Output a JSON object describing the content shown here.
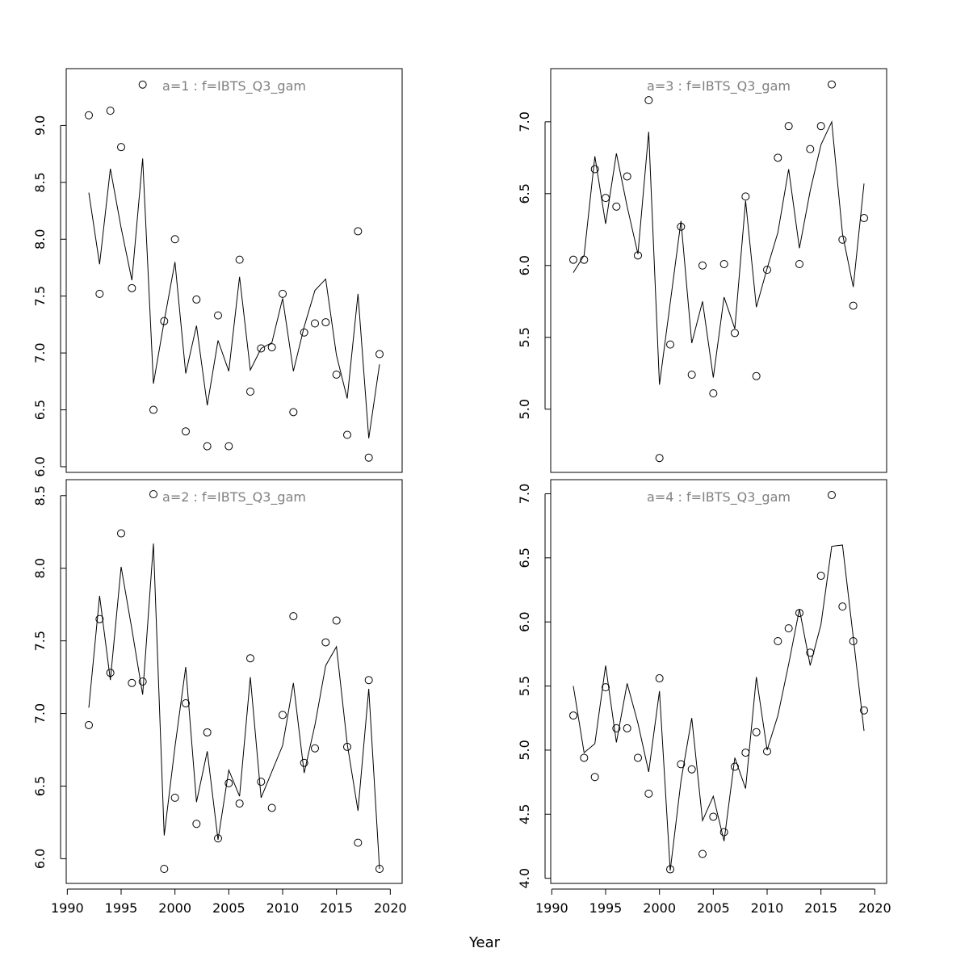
{
  "xlabel": "Year",
  "chart_data": [
    {
      "type": "line",
      "title": "a=1  :  f=IBTS_Q3_gam",
      "x": [
        1992,
        1993,
        1994,
        1995,
        1996,
        1997,
        1998,
        1999,
        2000,
        2001,
        2002,
        2003,
        2004,
        2005,
        2006,
        2007,
        2008,
        2009,
        2010,
        2011,
        2012,
        2013,
        2014,
        2015,
        2016,
        2017,
        2018,
        2019
      ],
      "xlim": [
        1989.9,
        2021.1
      ],
      "ylim": [
        5.95,
        9.5
      ],
      "yticks": [
        {
          "value": 6,
          "label": "6.0"
        },
        6.5,
        {
          "value": 7,
          "label": "7.0"
        },
        7.5,
        {
          "value": 8,
          "label": "8.0"
        },
        8.5,
        {
          "value": 9,
          "label": "9.0"
        }
      ],
      "series": [
        {
          "style": "points",
          "color": "#000000",
          "values": [
            9.09,
            7.52,
            9.13,
            8.81,
            7.57,
            9.36,
            6.5,
            7.28,
            8.0,
            6.31,
            7.47,
            6.18,
            7.33,
            6.18,
            7.82,
            6.66,
            7.04,
            7.05,
            7.52,
            6.48,
            7.18,
            7.26,
            7.27,
            6.81,
            6.28,
            8.07,
            6.08,
            6.99
          ]
        },
        {
          "style": "line",
          "color": "#000000",
          "values": [
            8.41,
            7.78,
            8.62,
            8.1,
            7.64,
            8.71,
            6.73,
            7.28,
            7.8,
            6.82,
            7.24,
            6.54,
            7.11,
            6.84,
            7.67,
            6.85,
            7.04,
            7.09,
            7.48,
            6.84,
            7.23,
            7.55,
            7.65,
            6.98,
            6.6,
            7.52,
            6.25,
            6.9
          ]
        }
      ]
    },
    {
      "type": "line",
      "title": "a=3  :  f=IBTS_Q3_gam",
      "x": [
        1992,
        1993,
        1994,
        1995,
        1996,
        1997,
        1998,
        1999,
        2000,
        2001,
        2002,
        2003,
        2004,
        2005,
        2006,
        2007,
        2008,
        2009,
        2010,
        2011,
        2012,
        2013,
        2014,
        2015,
        2016,
        2017,
        2018,
        2019
      ],
      "xlim": [
        1989.9,
        2021.1
      ],
      "ylim": [
        4.56,
        7.37
      ],
      "yticks": [
        {
          "value": 5,
          "label": "5.0"
        },
        5.5,
        {
          "value": 6,
          "label": "6.0"
        },
        6.5,
        {
          "value": 7,
          "label": "7.0"
        }
      ],
      "series": [
        {
          "style": "points",
          "color": "#000000",
          "values": [
            6.04,
            6.04,
            6.67,
            6.47,
            6.41,
            6.62,
            6.07,
            7.15,
            4.66,
            5.45,
            6.27,
            5.24,
            6.0,
            5.11,
            6.01,
            5.53,
            6.48,
            5.23,
            5.97,
            6.75,
            6.97,
            6.01,
            6.81,
            6.97,
            7.26,
            6.18,
            5.72,
            6.33
          ]
        },
        {
          "style": "line",
          "color": "#000000",
          "values": [
            5.95,
            6.07,
            6.76,
            6.29,
            6.78,
            6.41,
            6.08,
            6.93,
            5.17,
            5.74,
            6.31,
            5.46,
            5.75,
            5.22,
            5.78,
            5.56,
            6.45,
            5.71,
            5.98,
            6.23,
            6.67,
            6.12,
            6.52,
            6.84,
            7.0,
            6.22,
            5.85,
            6.57
          ]
        }
      ]
    },
    {
      "type": "line",
      "title": "a=2  :  f=IBTS_Q3_gam",
      "x": [
        1992,
        1993,
        1994,
        1995,
        1996,
        1997,
        1998,
        1999,
        2000,
        2001,
        2002,
        2003,
        2004,
        2005,
        2006,
        2007,
        2008,
        2009,
        2010,
        2011,
        2012,
        2013,
        2014,
        2015,
        2016,
        2017,
        2018,
        2019
      ],
      "xlim": [
        1989.9,
        2021.1
      ],
      "ylim": [
        5.83,
        8.61
      ],
      "xticks": [
        1990,
        1995,
        2000,
        2005,
        2010,
        2015,
        2020
      ],
      "yticks": [
        {
          "value": 6,
          "label": "6.0"
        },
        6.5,
        {
          "value": 7,
          "label": "7.0"
        },
        7.5,
        {
          "value": 8,
          "label": "8.0"
        },
        8.5
      ],
      "series": [
        {
          "style": "points",
          "color": "#000000",
          "values": [
            6.92,
            7.65,
            7.28,
            8.24,
            7.21,
            7.22,
            8.51,
            5.93,
            6.42,
            7.07,
            6.24,
            6.87,
            6.14,
            6.52,
            6.38,
            7.38,
            6.53,
            6.35,
            6.99,
            7.67,
            6.66,
            6.76,
            7.49,
            7.64,
            6.77,
            6.11,
            7.23,
            5.93
          ]
        },
        {
          "style": "line",
          "color": "#000000",
          "values": [
            7.04,
            7.81,
            7.23,
            8.01,
            7.58,
            7.13,
            8.17,
            6.16,
            6.77,
            7.32,
            6.39,
            6.74,
            6.13,
            6.61,
            6.43,
            7.25,
            6.42,
            6.6,
            6.78,
            7.21,
            6.59,
            6.92,
            7.33,
            7.46,
            6.79,
            6.33,
            7.17,
            5.93
          ]
        }
      ]
    },
    {
      "type": "line",
      "title": "a=4  :  f=IBTS_Q3_gam",
      "x": [
        1992,
        1993,
        1994,
        1995,
        1996,
        1997,
        1998,
        1999,
        2000,
        2001,
        2002,
        2003,
        2004,
        2005,
        2006,
        2007,
        2008,
        2009,
        2010,
        2011,
        2012,
        2013,
        2014,
        2015,
        2016,
        2017,
        2018,
        2019
      ],
      "xlim": [
        1989.9,
        2021.1
      ],
      "ylim": [
        3.96,
        7.11
      ],
      "xticks": [
        1990,
        1995,
        2000,
        2005,
        2010,
        2015,
        2020
      ],
      "yticks": [
        {
          "value": 4,
          "label": "4.0"
        },
        4.5,
        {
          "value": 5,
          "label": "5.0"
        },
        5.5,
        {
          "value": 6,
          "label": "6.0"
        },
        6.5,
        {
          "value": 7,
          "label": "7.0"
        }
      ],
      "series": [
        {
          "style": "points",
          "color": "#000000",
          "values": [
            5.27,
            4.94,
            4.79,
            5.49,
            5.17,
            5.17,
            4.94,
            4.66,
            5.56,
            4.07,
            4.89,
            4.85,
            4.19,
            4.48,
            4.36,
            4.87,
            4.98,
            5.14,
            4.99,
            5.85,
            5.95,
            6.07,
            5.76,
            6.36,
            6.99,
            6.12,
            5.85,
            5.31
          ]
        },
        {
          "style": "line",
          "color": "#000000",
          "values": [
            5.5,
            4.98,
            5.05,
            5.66,
            5.06,
            5.52,
            5.21,
            4.83,
            5.46,
            4.06,
            4.76,
            5.25,
            4.45,
            4.64,
            4.29,
            4.94,
            4.7,
            5.57,
            5.0,
            5.27,
            5.67,
            6.1,
            5.66,
            5.98,
            6.59,
            6.6,
            5.88,
            5.15
          ]
        }
      ]
    }
  ]
}
